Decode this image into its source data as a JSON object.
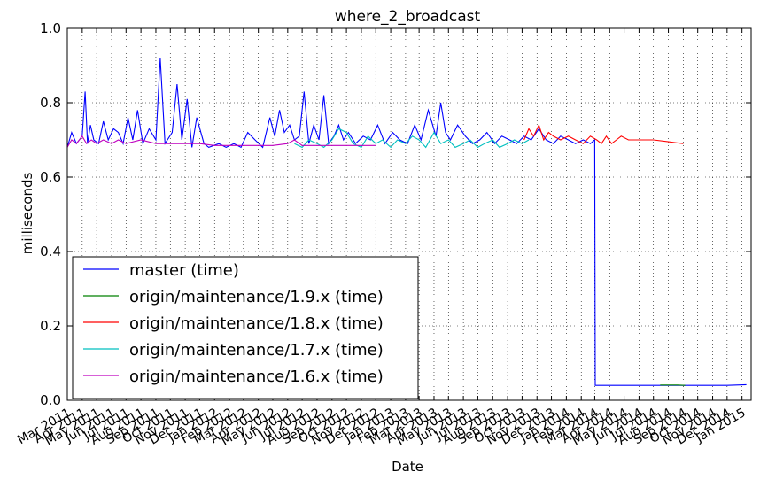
{
  "chart_data": {
    "type": "line",
    "title": "where_2_broadcast",
    "xlabel": "Date",
    "ylabel": "milliseconds",
    "ylim": [
      0,
      1.0
    ],
    "xlim": [
      "2011-03-01",
      "2015-01-20"
    ],
    "yticks": [
      "0.0",
      "0.2",
      "0.4",
      "0.6",
      "0.8",
      "1.0"
    ],
    "xticks": [
      "2011-03-01",
      "2011-04-01",
      "2011-05-01",
      "2011-06-01",
      "2011-07-01",
      "2011-08-01",
      "2011-09-01",
      "2011-10-01",
      "2011-11-01",
      "2011-12-01",
      "2012-01-01",
      "2012-02-01",
      "2012-03-01",
      "2012-04-01",
      "2012-05-01",
      "2012-06-01",
      "2012-07-01",
      "2012-08-01",
      "2012-09-01",
      "2012-10-01",
      "2012-11-01",
      "2012-12-01",
      "2013-01-01",
      "2013-02-01",
      "2013-03-01",
      "2013-04-01",
      "2013-05-01",
      "2013-06-01",
      "2013-07-01",
      "2013-08-01",
      "2013-09-01",
      "2013-10-01",
      "2013-11-01",
      "2013-12-01",
      "2014-01-01",
      "2014-02-01",
      "2014-03-01",
      "2014-04-01",
      "2014-05-01",
      "2014-06-01",
      "2014-07-01",
      "2014-08-01",
      "2014-09-01",
      "2014-10-01",
      "2014-11-01",
      "2014-12-01",
      "2015-01-01"
    ],
    "xtick_labels": [
      "Mar 2011",
      "Apr 2011",
      "May 2011",
      "Jun 2011",
      "Jul 2011",
      "Aug 2011",
      "Sep 2011",
      "Oct 2011",
      "Nov 2011",
      "Dec 2011",
      "Jan 2012",
      "Feb 2012",
      "Mar 2012",
      "Apr 2012",
      "May 2012",
      "Jun 2012",
      "Jul 2012",
      "Aug 2012",
      "Sep 2012",
      "Oct 2012",
      "Nov 2012",
      "Dec 2012",
      "Jan 2013",
      "Feb 2013",
      "Mar 2013",
      "Apr 2013",
      "May 2013",
      "Jun 2013",
      "Jul 2013",
      "Aug 2013",
      "Sep 2013",
      "Oct 2013",
      "Nov 2013",
      "Dec 2013",
      "Jan 2014",
      "Feb 2014",
      "Mar 2014",
      "Apr 2014",
      "May 2014",
      "Jun 2014",
      "Jul 2014",
      "Aug 2014",
      "Sep 2014",
      "Oct 2014",
      "Nov 2014",
      "Dec 2014",
      "Jan 2015"
    ],
    "grid": true,
    "legend_position": "lower-left",
    "series": [
      {
        "name": "master (time)",
        "color": "#0000ff",
        "x": [
          "2011-03-01",
          "2011-03-10",
          "2011-03-20",
          "2011-04-01",
          "2011-04-07",
          "2011-04-12",
          "2011-04-18",
          "2011-04-25",
          "2011-05-05",
          "2011-05-15",
          "2011-05-25",
          "2011-06-05",
          "2011-06-15",
          "2011-06-25",
          "2011-07-05",
          "2011-07-15",
          "2011-07-25",
          "2011-08-05",
          "2011-08-18",
          "2011-09-01",
          "2011-09-10",
          "2011-09-20",
          "2011-10-05",
          "2011-10-15",
          "2011-10-25",
          "2011-11-05",
          "2011-11-15",
          "2011-11-25",
          "2011-12-10",
          "2011-12-20",
          "2012-01-10",
          "2012-01-25",
          "2012-02-10",
          "2012-02-25",
          "2012-03-10",
          "2012-03-25",
          "2012-04-10",
          "2012-04-25",
          "2012-05-05",
          "2012-05-15",
          "2012-05-25",
          "2012-06-05",
          "2012-06-15",
          "2012-06-25",
          "2012-07-05",
          "2012-07-15",
          "2012-07-25",
          "2012-08-05",
          "2012-08-15",
          "2012-08-25",
          "2012-09-05",
          "2012-09-15",
          "2012-09-25",
          "2012-10-05",
          "2012-10-20",
          "2012-11-05",
          "2012-11-20",
          "2012-12-05",
          "2012-12-20",
          "2013-01-05",
          "2013-01-20",
          "2013-02-05",
          "2013-02-20",
          "2013-03-05",
          "2013-03-20",
          "2013-04-05",
          "2013-04-15",
          "2013-04-25",
          "2013-05-05",
          "2013-05-20",
          "2013-06-05",
          "2013-06-20",
          "2013-07-05",
          "2013-07-20",
          "2013-08-05",
          "2013-08-20",
          "2013-09-05",
          "2013-09-20",
          "2013-10-05",
          "2013-10-20",
          "2013-11-05",
          "2013-11-20",
          "2013-12-05",
          "2013-12-20",
          "2014-01-05",
          "2014-01-20",
          "2014-02-05",
          "2014-02-20",
          "2014-03-01",
          "2014-03-02",
          "2014-04-01",
          "2014-05-01",
          "2014-06-01",
          "2014-07-01",
          "2014-08-01",
          "2014-09-01",
          "2014-10-01",
          "2014-11-01",
          "2014-12-01",
          "2015-01-10"
        ],
        "y": [
          0.68,
          0.72,
          0.69,
          0.71,
          0.83,
          0.69,
          0.74,
          0.7,
          0.69,
          0.75,
          0.7,
          0.73,
          0.72,
          0.69,
          0.76,
          0.7,
          0.78,
          0.69,
          0.73,
          0.7,
          0.92,
          0.69,
          0.72,
          0.85,
          0.7,
          0.81,
          0.68,
          0.76,
          0.69,
          0.68,
          0.69,
          0.68,
          0.69,
          0.68,
          0.72,
          0.7,
          0.68,
          0.76,
          0.71,
          0.78,
          0.72,
          0.74,
          0.7,
          0.71,
          0.83,
          0.69,
          0.74,
          0.7,
          0.82,
          0.69,
          0.71,
          0.74,
          0.7,
          0.72,
          0.69,
          0.71,
          0.7,
          0.74,
          0.69,
          0.72,
          0.7,
          0.69,
          0.74,
          0.7,
          0.78,
          0.71,
          0.8,
          0.72,
          0.7,
          0.74,
          0.71,
          0.69,
          0.7,
          0.72,
          0.69,
          0.71,
          0.7,
          0.69,
          0.71,
          0.7,
          0.73,
          0.7,
          0.69,
          0.71,
          0.7,
          0.69,
          0.7,
          0.69,
          0.7,
          0.04,
          0.04,
          0.04,
          0.04,
          0.04,
          0.04,
          0.04,
          0.04,
          0.04,
          0.04,
          0.042
        ]
      },
      {
        "name": "origin/maintenance/1.9.x (time)",
        "color": "#008000",
        "x": [
          "2014-07-15",
          "2014-08-01",
          "2014-08-20",
          "2014-09-05"
        ],
        "y": [
          0.041,
          0.041,
          0.041,
          0.04
        ]
      },
      {
        "name": "origin/maintenance/1.8.x (time)",
        "color": "#ff0000",
        "x": [
          "2013-10-05",
          "2013-10-15",
          "2013-10-25",
          "2013-11-05",
          "2013-11-15",
          "2013-11-25",
          "2013-12-05",
          "2013-12-20",
          "2014-01-05",
          "2014-01-20",
          "2014-02-05",
          "2014-02-20",
          "2014-03-05",
          "2014-03-15",
          "2014-03-25",
          "2014-04-05",
          "2014-04-15",
          "2014-04-25",
          "2014-05-10",
          "2014-06-01",
          "2014-07-01",
          "2014-08-01",
          "2014-09-01"
        ],
        "y": [
          0.7,
          0.73,
          0.71,
          0.74,
          0.7,
          0.72,
          0.71,
          0.7,
          0.71,
          0.7,
          0.69,
          0.71,
          0.7,
          0.69,
          0.71,
          0.69,
          0.7,
          0.71,
          0.7,
          0.7,
          0.7,
          0.695,
          0.69
        ]
      },
      {
        "name": "origin/maintenance/1.7.x (time)",
        "color": "#00bfbf",
        "x": [
          "2012-06-15",
          "2012-07-01",
          "2012-07-15",
          "2012-08-01",
          "2012-08-15",
          "2012-09-01",
          "2012-09-15",
          "2012-10-01",
          "2012-10-15",
          "2012-11-01",
          "2012-11-15",
          "2012-12-01",
          "2012-12-15",
          "2013-01-01",
          "2013-01-15",
          "2013-02-01",
          "2013-02-15",
          "2013-03-01",
          "2013-03-15",
          "2013-04-01",
          "2013-04-15",
          "2013-05-01",
          "2013-05-15",
          "2013-06-01",
          "2013-06-15",
          "2013-07-01",
          "2013-07-15",
          "2013-08-01",
          "2013-08-15",
          "2013-09-01",
          "2013-09-15",
          "2013-10-01",
          "2013-10-15"
        ],
        "y": [
          0.69,
          0.68,
          0.7,
          0.69,
          0.68,
          0.7,
          0.73,
          0.72,
          0.69,
          0.68,
          0.71,
          0.69,
          0.7,
          0.68,
          0.7,
          0.69,
          0.71,
          0.7,
          0.68,
          0.72,
          0.69,
          0.7,
          0.68,
          0.69,
          0.7,
          0.68,
          0.69,
          0.7,
          0.68,
          0.69,
          0.7,
          0.69,
          0.7
        ]
      },
      {
        "name": "origin/maintenance/1.6.x (time)",
        "color": "#bf00bf",
        "x": [
          "2011-03-01",
          "2011-03-10",
          "2011-03-20",
          "2011-04-01",
          "2011-04-10",
          "2011-04-20",
          "2011-05-01",
          "2011-05-15",
          "2011-06-01",
          "2011-06-15",
          "2011-07-01",
          "2011-08-01",
          "2011-09-01",
          "2011-10-01",
          "2011-11-01",
          "2011-12-01",
          "2012-01-01",
          "2012-02-01",
          "2012-03-01",
          "2012-04-01",
          "2012-05-01",
          "2012-06-01",
          "2012-06-15",
          "2012-07-01",
          "2012-08-01",
          "2012-09-01",
          "2012-10-01",
          "2012-11-01",
          "2012-12-01"
        ],
        "y": [
          0.68,
          0.7,
          0.69,
          0.71,
          0.69,
          0.7,
          0.69,
          0.7,
          0.69,
          0.7,
          0.69,
          0.7,
          0.69,
          0.69,
          0.69,
          0.69,
          0.685,
          0.685,
          0.685,
          0.685,
          0.685,
          0.69,
          0.7,
          0.685,
          0.685,
          0.685,
          0.685,
          0.685,
          0.685
        ]
      }
    ]
  }
}
